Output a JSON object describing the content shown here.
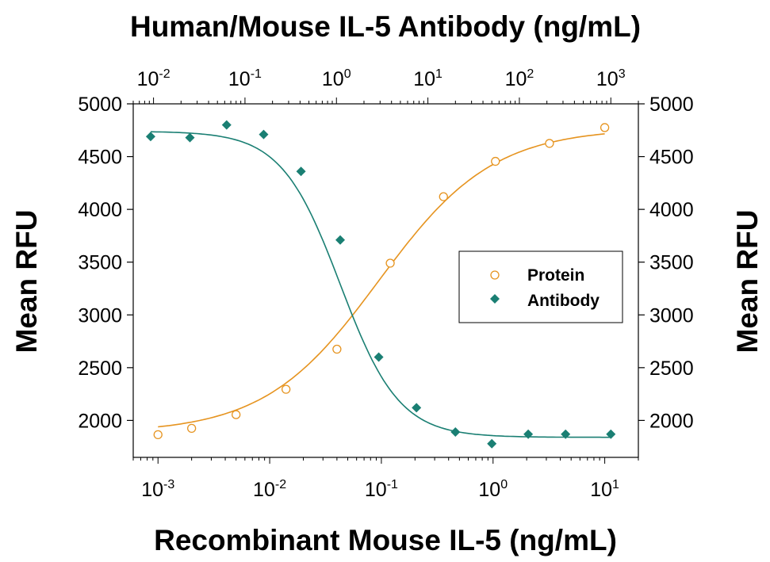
{
  "chart_data": {
    "type": "scatter",
    "title": "Human/Mouse IL-5 Antibody (ng/mL)",
    "xlabel": "Recombinant Mouse IL-5 (ng/mL)",
    "ylabel": "Mean RFU",
    "ylabel_right": "Mean RFU",
    "x_scale": "log",
    "xlim": [
      0.0006,
      20
    ],
    "ylim": [
      1650,
      5000
    ],
    "x_top_scale": "log",
    "x_top_lim": [
      0.006,
      2000
    ],
    "y_ticks": [
      2000,
      2500,
      3000,
      3500,
      4000,
      4500,
      5000
    ],
    "x_ticks": [
      {
        "value": 0.001,
        "base": "10",
        "exp": "-3"
      },
      {
        "value": 0.01,
        "base": "10",
        "exp": "-2"
      },
      {
        "value": 0.1,
        "base": "10",
        "exp": "-1"
      },
      {
        "value": 1,
        "base": "10",
        "exp": "0"
      },
      {
        "value": 10,
        "base": "10",
        "exp": "1"
      }
    ],
    "x_top_ticks": [
      {
        "value": 0.01,
        "base": "10",
        "exp": "-2"
      },
      {
        "value": 0.1,
        "base": "10",
        "exp": "-1"
      },
      {
        "value": 1,
        "base": "10",
        "exp": "0"
      },
      {
        "value": 10,
        "base": "10",
        "exp": "1"
      },
      {
        "value": 100,
        "base": "10",
        "exp": "2"
      },
      {
        "value": 1000,
        "base": "10",
        "exp": "3"
      }
    ],
    "legend_position": "center-right",
    "series": [
      {
        "name": "Protein",
        "axis": "bottom",
        "marker": "open-circle",
        "color": "#E69420",
        "x": [
          0.001,
          0.002,
          0.005,
          0.014,
          0.04,
          0.12,
          0.36,
          1.05,
          3.2,
          10
        ],
        "y": [
          1865,
          1925,
          2055,
          2295,
          2675,
          3490,
          4120,
          4455,
          4625,
          4775
        ],
        "fit": {
          "bottom": 1880,
          "top": 4770,
          "ec50": 0.095,
          "hill": 0.85
        }
      },
      {
        "name": "Antibody",
        "axis": "top",
        "marker": "filled-diamond",
        "color": "#1A7F73",
        "x": [
          0.0093,
          0.025,
          0.063,
          0.16,
          0.41,
          1.1,
          2.9,
          7.5,
          20,
          50,
          125,
          320,
          1000
        ],
        "y": [
          4690,
          4680,
          4800,
          4710,
          4360,
          3710,
          2600,
          2120,
          1890,
          1780,
          1870,
          1870,
          1870
        ],
        "fit": {
          "bottom": 1840,
          "top": 4740,
          "ec50": 1.1,
          "hill": 1.35
        }
      }
    ]
  }
}
